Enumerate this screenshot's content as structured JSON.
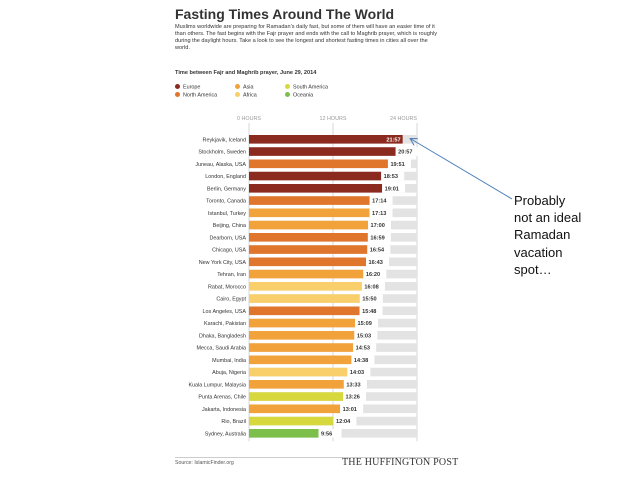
{
  "chart_data": {
    "type": "bar",
    "orientation": "horizontal",
    "title": "Fasting Times Around The World",
    "intro": "Muslims worldwide are preparing for Ramadan’s daily fast, but some of them will have an easier time of it than others. The fast begins with the Fajr prayer and ends with the call to Maghrib prayer, which is roughly during the daylight hours. Take a look to see the longest and shortest fasting times in cities all over the world.",
    "subtitle": "Time between Fajr and Maghrib prayer, June 29, 2014",
    "axis_ticks": [
      {
        "value": 0,
        "label": "0 HOURS"
      },
      {
        "value": 12,
        "label": "12 HOURS"
      },
      {
        "value": 24,
        "label": "24 HOURS"
      }
    ],
    "xlim": [
      0,
      24
    ],
    "legend": [
      {
        "name": "Europe",
        "color": "#8b2a1e"
      },
      {
        "name": "North America",
        "color": "#e0752c"
      },
      {
        "name": "Asia",
        "color": "#f2a23a"
      },
      {
        "name": "Africa",
        "color": "#f8cf6a"
      },
      {
        "name": "South America",
        "color": "#d7d83d"
      },
      {
        "name": "Oceania",
        "color": "#7dbf4b"
      }
    ],
    "bars": [
      {
        "city": "Reykjavik, Iceland",
        "label": "21:57",
        "hours": 21.95,
        "region": "Europe"
      },
      {
        "city": "Stockholm, Sweden",
        "label": "20:57",
        "hours": 20.95,
        "region": "Europe"
      },
      {
        "city": "Juneau, Alaska, USA",
        "label": "19:51",
        "hours": 19.85,
        "region": "North America"
      },
      {
        "city": "London, England",
        "label": "18:53",
        "hours": 18.883,
        "region": "Europe"
      },
      {
        "city": "Berlin, Germany",
        "label": "19:01",
        "hours": 19.017,
        "region": "Europe"
      },
      {
        "city": "Toronto, Canada",
        "label": "17:14",
        "hours": 17.233,
        "region": "North America"
      },
      {
        "city": "Istanbul, Turkey",
        "label": "17:13",
        "hours": 17.217,
        "region": "Asia"
      },
      {
        "city": "Beijing, China",
        "label": "17:00",
        "hours": 17.0,
        "region": "Asia"
      },
      {
        "city": "Dearborn, USA",
        "label": "16:59",
        "hours": 16.983,
        "region": "North America"
      },
      {
        "city": "Chicago, USA",
        "label": "16:54",
        "hours": 16.9,
        "region": "North America"
      },
      {
        "city": "New York City, USA",
        "label": "16:43",
        "hours": 16.717,
        "region": "North America"
      },
      {
        "city": "Tehran, Iran",
        "label": "16:20",
        "hours": 16.333,
        "region": "Asia"
      },
      {
        "city": "Rabat, Morocco",
        "label": "16:08",
        "hours": 16.133,
        "region": "Africa"
      },
      {
        "city": "Cairo, Egypt",
        "label": "15:50",
        "hours": 15.833,
        "region": "Africa"
      },
      {
        "city": "Los Angeles, USA",
        "label": "15:48",
        "hours": 15.8,
        "region": "North America"
      },
      {
        "city": "Karachi, Pakistan",
        "label": "15:09",
        "hours": 15.15,
        "region": "Asia"
      },
      {
        "city": "Dhaka, Bangladesh",
        "label": "15:03",
        "hours": 15.05,
        "region": "Asia"
      },
      {
        "city": "Mecca, Saudi Arabia",
        "label": "14:53",
        "hours": 14.883,
        "region": "Asia"
      },
      {
        "city": "Mumbai, India",
        "label": "14:38",
        "hours": 14.633,
        "region": "Asia"
      },
      {
        "city": "Abuja, Nigeria",
        "label": "14:03",
        "hours": 14.05,
        "region": "Africa"
      },
      {
        "city": "Kuala Lumpur, Malaysia",
        "label": "13:33",
        "hours": 13.55,
        "region": "Asia"
      },
      {
        "city": "Punta Arenas, Chile",
        "label": "13:26",
        "hours": 13.433,
        "region": "South America"
      },
      {
        "city": "Jakarta, Indonesia",
        "label": "13:01",
        "hours": 13.017,
        "region": "Asia"
      },
      {
        "city": "Rio, Brazil",
        "label": "12:04",
        "hours": 12.067,
        "region": "South America"
      },
      {
        "city": "Sydney, Australia",
        "label": "9:56",
        "hours": 9.933,
        "region": "Oceania"
      }
    ],
    "source": "Source: IslamicFinder.org",
    "publisher": "THE HUFFINGTON POST",
    "track_color": "#e3e3e3",
    "highlight_color": "#ffffff"
  },
  "callout": {
    "lines": [
      "Probably",
      "not an ideal",
      "Ramadan",
      "vacation",
      "spot…"
    ],
    "arrow_color": "#4a7ebb"
  }
}
